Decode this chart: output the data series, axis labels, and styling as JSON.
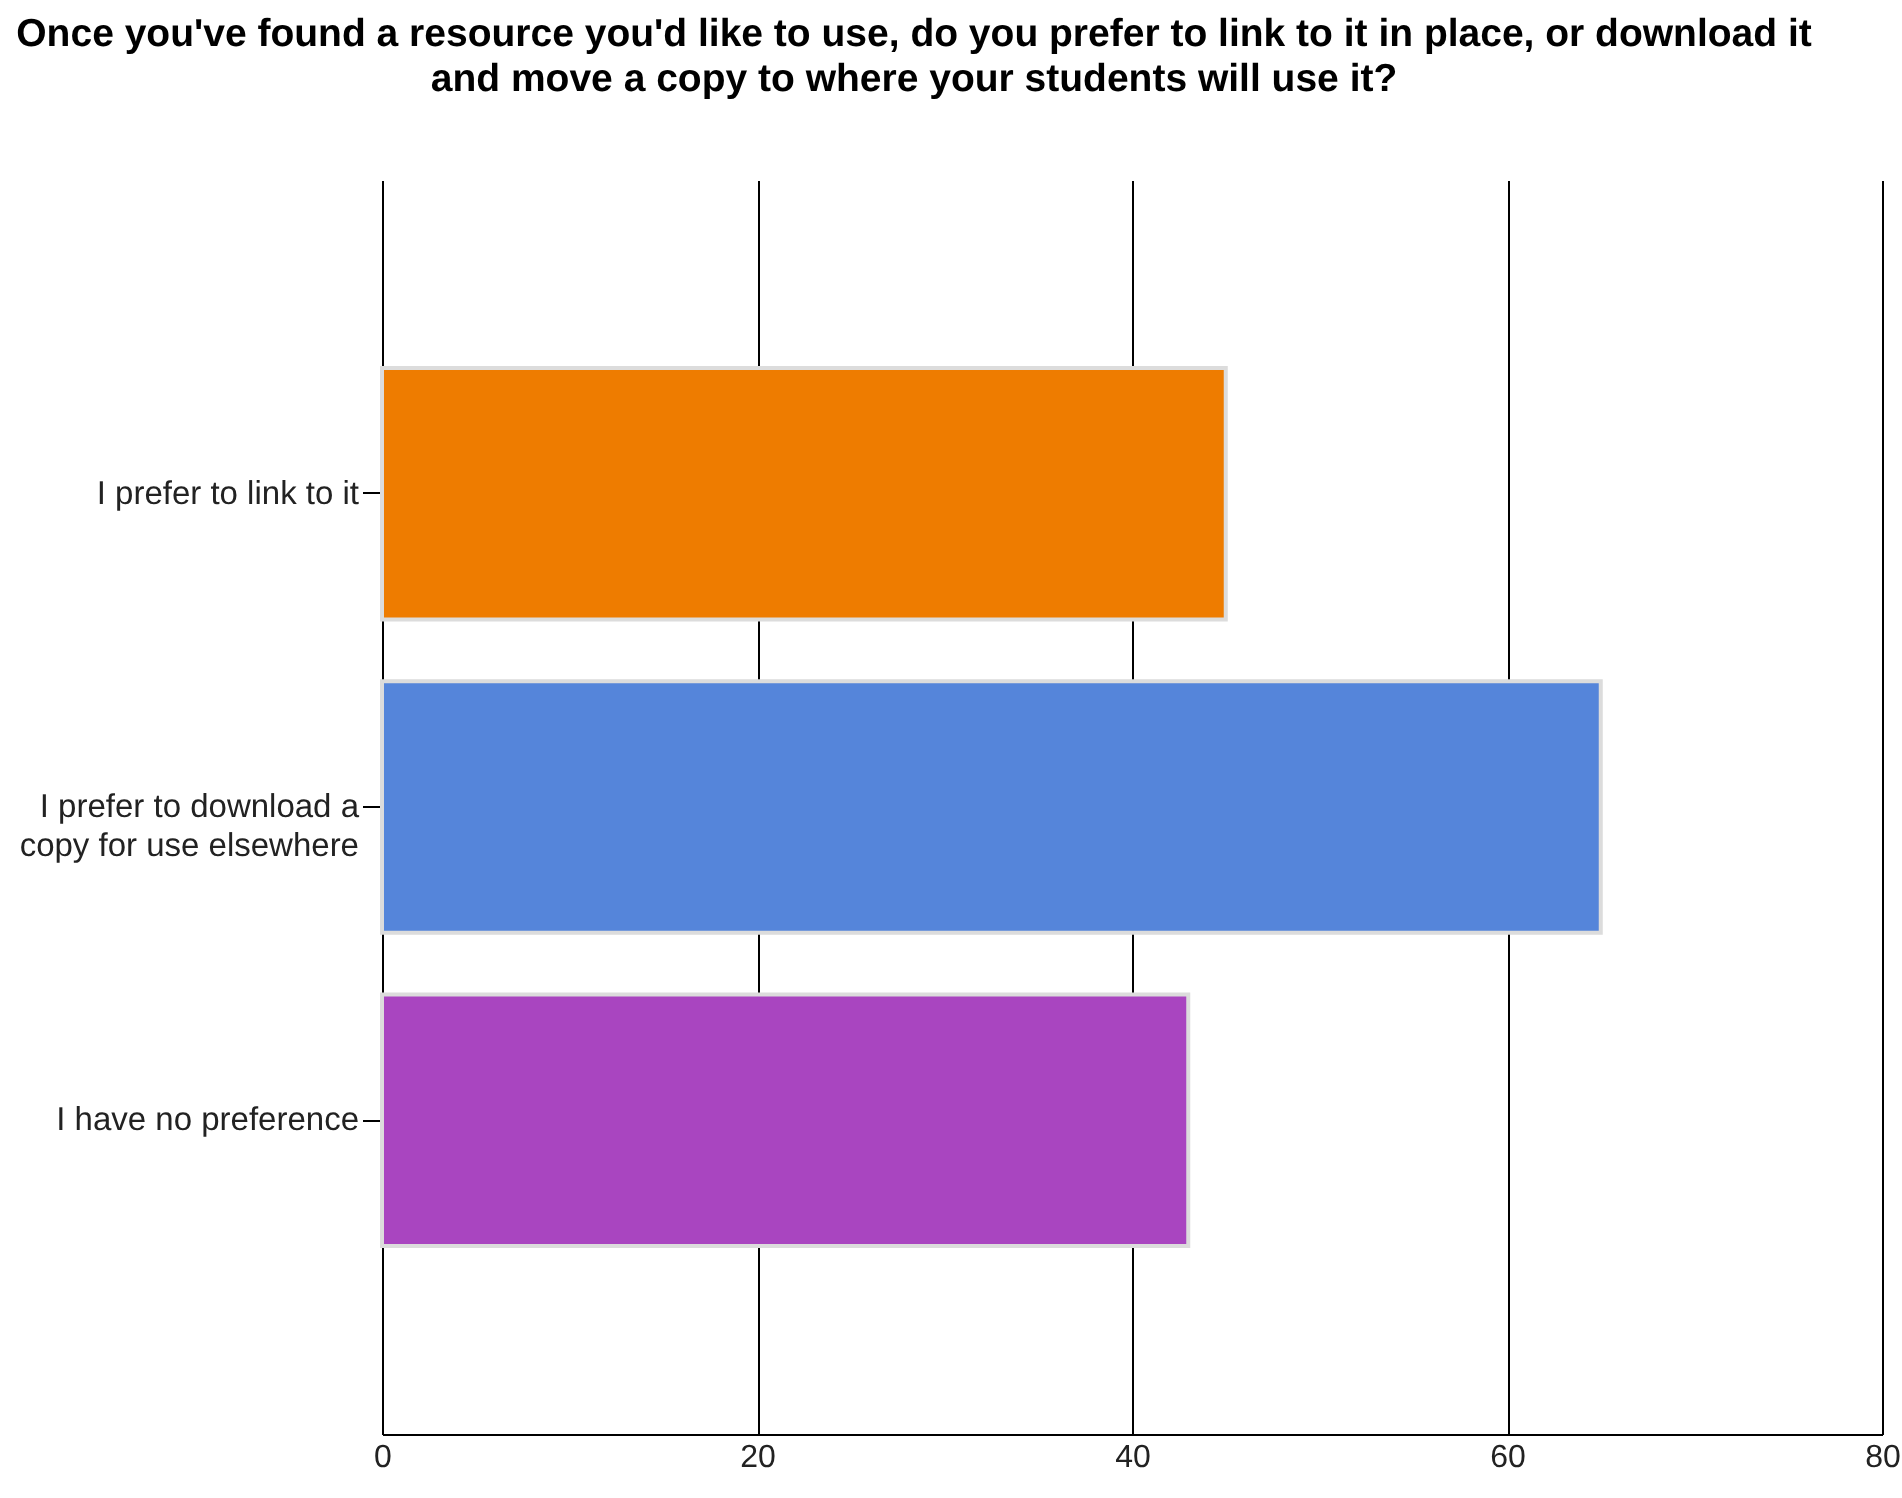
{
  "chart_data": {
    "type": "bar",
    "orientation": "horizontal",
    "title": "Once you've found a resource you'd like to use, do you prefer to link to it in place, or download it and move a copy to where your students will use it?",
    "categories": [
      "I prefer to link to it",
      "I prefer to download a copy for use elsewhere",
      "I have no preference"
    ],
    "values": [
      45,
      65,
      43
    ],
    "colors": [
      "#ee7c00",
      "#5585da",
      "#a945c0"
    ],
    "xlim": [
      0,
      80
    ],
    "xticks": [
      0,
      20,
      40,
      60,
      80
    ],
    "grid": "x"
  }
}
